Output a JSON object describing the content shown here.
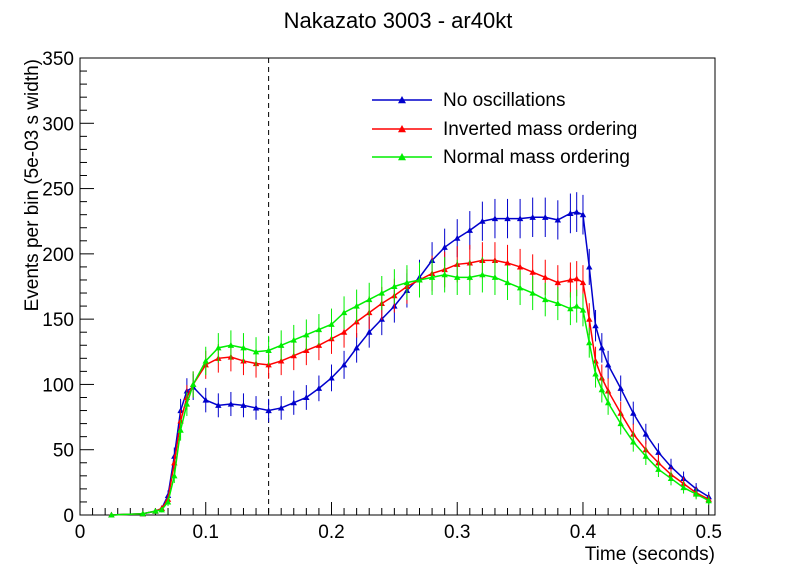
{
  "chart_data": {
    "type": "line",
    "title": "Nakazato 3003 - ar40kt",
    "xlabel": "Time (seconds)",
    "ylabel": "Events per bin (5e-03 s width)",
    "xlim": [
      0,
      0.505
    ],
    "ylim": [
      0,
      350
    ],
    "xticks": [
      0,
      0.1,
      0.2,
      0.3,
      0.4,
      0.5
    ],
    "xtick_labels": [
      "0",
      "0.1",
      "0.2",
      "0.3",
      "0.4",
      "0.5"
    ],
    "yticks": [
      0,
      50,
      100,
      150,
      200,
      250,
      300,
      350
    ],
    "ytick_labels": [
      "0",
      "50",
      "100",
      "150",
      "200",
      "250",
      "300",
      "350"
    ],
    "vline_x": 0.15,
    "legend_position": "top-right",
    "grid": false,
    "x": [
      0.025,
      0.05,
      0.06,
      0.065,
      0.07,
      0.075,
      0.08,
      0.085,
      0.09,
      0.1,
      0.11,
      0.12,
      0.13,
      0.14,
      0.15,
      0.16,
      0.17,
      0.18,
      0.19,
      0.2,
      0.21,
      0.22,
      0.23,
      0.24,
      0.25,
      0.26,
      0.27,
      0.28,
      0.29,
      0.3,
      0.31,
      0.32,
      0.33,
      0.34,
      0.35,
      0.36,
      0.37,
      0.38,
      0.39,
      0.395,
      0.4,
      0.405,
      0.41,
      0.415,
      0.42,
      0.43,
      0.44,
      0.45,
      0.46,
      0.47,
      0.48,
      0.49,
      0.5
    ],
    "series": [
      {
        "name": "No oscillations",
        "color": "#0000cc",
        "values": [
          0,
          1,
          3,
          5,
          15,
          45,
          80,
          95,
          98,
          88,
          84,
          85,
          84,
          82,
          80,
          82,
          86,
          90,
          97,
          105,
          115,
          128,
          140,
          150,
          160,
          172,
          182,
          195,
          205,
          212,
          218,
          225,
          227,
          227,
          227,
          228,
          228,
          226,
          231,
          232,
          230,
          190,
          145,
          128,
          115,
          97,
          78,
          62,
          48,
          37,
          28,
          20,
          14
        ]
      },
      {
        "name": "Inverted mass ordering",
        "color": "#ff0000",
        "values": [
          0,
          1,
          3,
          5,
          12,
          40,
          72,
          90,
          100,
          115,
          120,
          121,
          118,
          116,
          115,
          118,
          122,
          126,
          130,
          135,
          140,
          148,
          155,
          162,
          168,
          175,
          180,
          185,
          188,
          192,
          193,
          195,
          195,
          193,
          190,
          186,
          182,
          178,
          180,
          181,
          178,
          150,
          118,
          105,
          95,
          78,
          62,
          50,
          40,
          31,
          24,
          17,
          12
        ]
      },
      {
        "name": "Normal mass ordering",
        "color": "#00ee00",
        "values": [
          0,
          1,
          3,
          4,
          10,
          30,
          65,
          85,
          100,
          118,
          128,
          130,
          128,
          125,
          126,
          130,
          134,
          138,
          142,
          146,
          155,
          160,
          165,
          170,
          175,
          178,
          180,
          182,
          184,
          182,
          182,
          184,
          182,
          178,
          174,
          170,
          165,
          162,
          158,
          160,
          157,
          132,
          108,
          96,
          86,
          70,
          56,
          45,
          35,
          28,
          21,
          16,
          11
        ]
      }
    ]
  }
}
